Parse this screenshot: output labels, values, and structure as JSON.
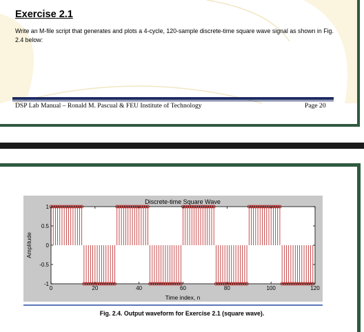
{
  "exercise": {
    "title": "Exercise 2.1",
    "body": "Write an M-file script that generates and plots a 4-cycle, 120-sample discrete-time square wave signal as shown in Fig. 2.4 below:"
  },
  "footer": {
    "left": "DSP Lab Manual – Ronald M. Pascual & FEU Institute of Technology",
    "page": "Page 20"
  },
  "figure": {
    "caption": "Fig. 2.4.  Output waveform for Exercise 2.1 (square wave).",
    "bg_color": "#c8c8c8",
    "stem_color": "#b00000"
  },
  "chart_data": {
    "type": "stem",
    "title": "Discrete-time Square Wave",
    "xlabel": "Time index, n",
    "ylabel": "Amplitude",
    "xlim": [
      0,
      120
    ],
    "ylim": [
      -1,
      1
    ],
    "xticks": [
      0,
      20,
      40,
      60,
      80,
      100,
      120
    ],
    "yticks": [
      -1,
      -0.5,
      0,
      0.5,
      1
    ],
    "ytick_labels": [
      "-1",
      "-0.5",
      "0",
      "0.5",
      "1"
    ],
    "samples": 120,
    "cycles": 4,
    "period": 30,
    "segments": [
      {
        "n_start": 0,
        "n_end": 14,
        "value": 1
      },
      {
        "n_start": 15,
        "n_end": 29,
        "value": -1
      },
      {
        "n_start": 30,
        "n_end": 44,
        "value": 1
      },
      {
        "n_start": 45,
        "n_end": 59,
        "value": -1
      },
      {
        "n_start": 60,
        "n_end": 74,
        "value": 1
      },
      {
        "n_start": 75,
        "n_end": 89,
        "value": -1
      },
      {
        "n_start": 90,
        "n_end": 104,
        "value": 1
      },
      {
        "n_start": 105,
        "n_end": 119,
        "value": -1
      }
    ],
    "grid": false
  }
}
